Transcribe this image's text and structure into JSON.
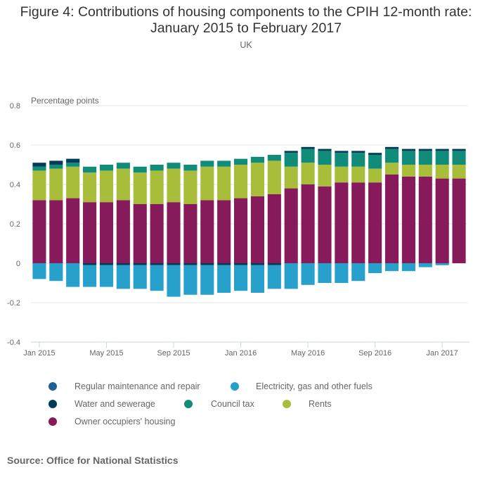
{
  "chart_data": {
    "type": "bar",
    "stacked": true,
    "title": "Figure 4: Contributions of housing components to the CPIH 12-month rate: January 2015 to February 2017",
    "title_lines": [
      "Figure 4: Contributions of housing components to the CPIH 12-month rate:",
      "January 2015 to February 2017"
    ],
    "subtitle": "UK",
    "xlabel": "",
    "ylabel": "Percentage points",
    "ylim": [
      -0.4,
      0.8
    ],
    "yticks": [
      0.8,
      0.6,
      0.4,
      0.2,
      0,
      -0.2,
      -0.4
    ],
    "ytick_labels": [
      "0.8",
      "0.6",
      "0.4",
      "0.2",
      "0",
      "-0.2",
      "-0.4"
    ],
    "grid": true,
    "legend_position": "bottom",
    "categories": [
      "Jan 2015",
      "Feb 2015",
      "Mar 2015",
      "Apr 2015",
      "May 2015",
      "Jun 2015",
      "Jul 2015",
      "Aug 2015",
      "Sep 2015",
      "Oct 2015",
      "Nov 2015",
      "Dec 2015",
      "Jan 2016",
      "Feb 2016",
      "Mar 2016",
      "Apr 2016",
      "May 2016",
      "Jun 2016",
      "Jul 2016",
      "Aug 2016",
      "Sep 2016",
      "Oct 2016",
      "Nov 2016",
      "Dec 2016",
      "Jan 2017",
      "Feb 2017"
    ],
    "xtick_labels": [
      {
        "index": 0,
        "label": "Jan 2015"
      },
      {
        "index": 4,
        "label": "May 2015"
      },
      {
        "index": 8,
        "label": "Sep 2015"
      },
      {
        "index": 12,
        "label": "Jan 2016"
      },
      {
        "index": 16,
        "label": "May 2016"
      },
      {
        "index": 20,
        "label": "Sep 2016"
      },
      {
        "index": 24,
        "label": "Jan 2017"
      }
    ],
    "series": [
      {
        "name": "Regular maintenance and repair",
        "color": "#206095",
        "values": [
          0,
          0,
          0,
          0,
          0,
          0,
          0,
          0,
          0,
          0,
          0,
          0,
          0,
          0,
          0,
          0,
          0,
          0,
          0,
          0,
          0,
          0,
          0,
          0,
          0,
          0
        ]
      },
      {
        "name": "Electricity, gas and other fuels",
        "color": "#27a0cc",
        "values": [
          -0.08,
          -0.09,
          -0.12,
          -0.11,
          -0.11,
          -0.12,
          -0.12,
          -0.13,
          -0.16,
          -0.15,
          -0.15,
          -0.14,
          -0.13,
          -0.14,
          -0.12,
          -0.13,
          -0.11,
          -0.1,
          -0.1,
          -0.09,
          -0.05,
          -0.04,
          -0.04,
          -0.02,
          -0.01,
          0
        ]
      },
      {
        "name": "Water and sewerage",
        "color": "#003c57",
        "values": [
          0.02,
          0.02,
          0.02,
          -0.01,
          -0.01,
          -0.01,
          -0.01,
          -0.01,
          -0.01,
          -0.01,
          -0.01,
          -0.01,
          -0.01,
          -0.01,
          -0.01,
          0.01,
          0.01,
          0.01,
          0.01,
          0.01,
          0.01,
          0.01,
          0.01,
          0.01,
          0.01,
          0.01
        ]
      },
      {
        "name": "Council tax",
        "color": "#118c7b",
        "values": [
          0.02,
          0.02,
          0.02,
          0.03,
          0.03,
          0.03,
          0.03,
          0.03,
          0.03,
          0.03,
          0.03,
          0.03,
          0.03,
          0.03,
          0.03,
          0.07,
          0.07,
          0.07,
          0.07,
          0.07,
          0.07,
          0.07,
          0.07,
          0.07,
          0.07,
          0.07
        ]
      },
      {
        "name": "Rents",
        "color": "#a8bd3a",
        "values": [
          0.15,
          0.16,
          0.16,
          0.15,
          0.16,
          0.16,
          0.16,
          0.17,
          0.17,
          0.17,
          0.17,
          0.17,
          0.17,
          0.17,
          0.17,
          0.11,
          0.11,
          0.11,
          0.08,
          0.08,
          0.07,
          0.06,
          0.06,
          0.06,
          0.07,
          0.07
        ]
      },
      {
        "name": "Owner occupiers' housing",
        "color": "#871a5b",
        "values": [
          0.32,
          0.32,
          0.33,
          0.31,
          0.31,
          0.32,
          0.3,
          0.3,
          0.31,
          0.3,
          0.32,
          0.32,
          0.33,
          0.34,
          0.35,
          0.38,
          0.4,
          0.39,
          0.41,
          0.41,
          0.41,
          0.45,
          0.44,
          0.44,
          0.43,
          0.43
        ]
      }
    ]
  },
  "legend": {
    "items": [
      {
        "label": "Regular maintenance and repair",
        "color": "#206095"
      },
      {
        "label": "Electricity, gas and other fuels",
        "color": "#27a0cc"
      },
      {
        "label": "Water and sewerage",
        "color": "#003c57"
      },
      {
        "label": "Council tax",
        "color": "#118c7b"
      },
      {
        "label": "Rents",
        "color": "#a8bd3a"
      },
      {
        "label": "Owner occupiers' housing",
        "color": "#871a5b"
      }
    ]
  },
  "source": "Source: Office for National Statistics"
}
